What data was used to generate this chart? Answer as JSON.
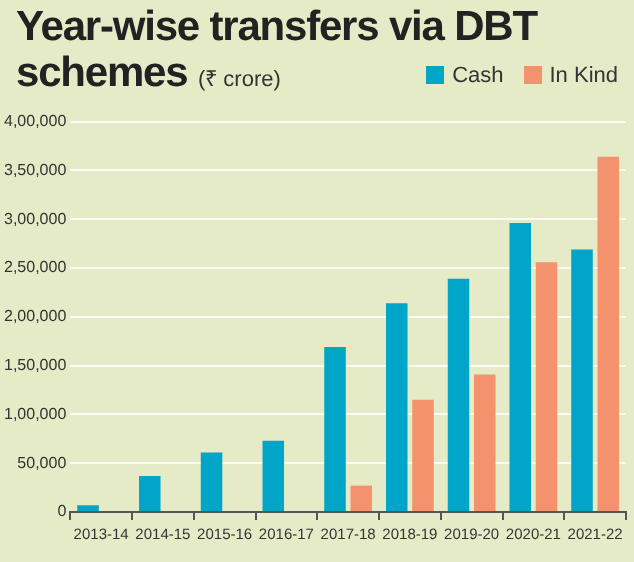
{
  "chart_data": {
    "type": "bar",
    "title": "Year-wise transfers via DBT schemes",
    "subtitle": "(₹ crore)",
    "categories": [
      "2013-14",
      "2014-15",
      "2015-16",
      "2016-17",
      "2017-18",
      "2018-19",
      "2019-20",
      "2020-21",
      "2021-22"
    ],
    "series": [
      {
        "name": "Cash",
        "color": "#00a5c8",
        "values": [
          7000,
          37000,
          61000,
          73000,
          169000,
          214000,
          239000,
          296000,
          269000
        ]
      },
      {
        "name": "In Kind",
        "color": "#f4926e",
        "values": [
          null,
          null,
          null,
          null,
          27000,
          115000,
          141000,
          256000,
          364000
        ]
      }
    ],
    "ylim": [
      0,
      400000
    ],
    "yticks": [
      0,
      {
        "value": 50000,
        "label": "50,000"
      },
      {
        "value": 100000,
        "label": "1,00,000"
      },
      {
        "value": 150000,
        "label": "1,50,000"
      },
      {
        "value": 200000,
        "label": "2,00,000"
      },
      {
        "value": 250000,
        "label": "2,50,000"
      },
      {
        "value": 300000,
        "label": "3,00,000"
      },
      {
        "value": 350000,
        "label": "3,50,000"
      },
      {
        "value": 400000,
        "label": "4,00,000"
      }
    ],
    "grid": "y",
    "legend": "top right"
  }
}
